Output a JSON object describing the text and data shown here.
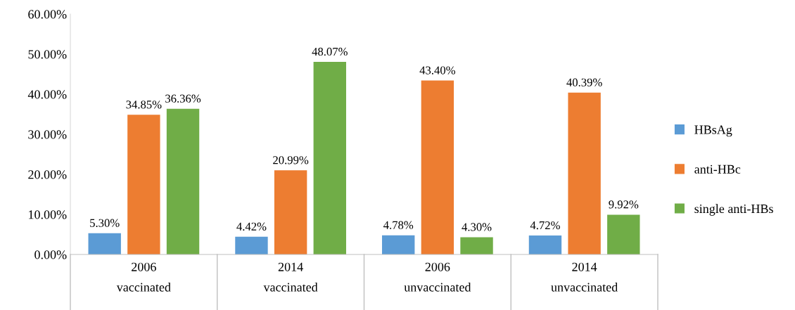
{
  "chart_data": {
    "type": "bar",
    "categories": [
      "2006\nvaccinated",
      "2014\nvaccinated",
      "2006\nunvaccinated",
      "2014\nunvaccinated"
    ],
    "series": [
      {
        "name": "HBsAg",
        "color": "#5b9bd5",
        "values": [
          5.3,
          4.42,
          4.78,
          4.72
        ],
        "value_labels": [
          "5.30%",
          "4.42%",
          "4.78%",
          "4.72%"
        ]
      },
      {
        "name": "anti-HBc",
        "color": "#ed7d31",
        "values": [
          34.85,
          20.99,
          43.4,
          40.39
        ],
        "value_labels": [
          "34.85%",
          "20.99%",
          "43.40%",
          "40.39%"
        ]
      },
      {
        "name": "single anti-HBs",
        "color": "#70ad47",
        "values": [
          36.36,
          48.07,
          4.3,
          9.92
        ],
        "value_labels": [
          "36.36%",
          "48.07%",
          "4.30%",
          "9.92%"
        ]
      }
    ],
    "ylim": [
      0,
      60
    ],
    "yticks": [
      {
        "value": 0,
        "label": "0.00%"
      },
      {
        "value": 10,
        "label": "10.00%"
      },
      {
        "value": 20,
        "label": "20.00%"
      },
      {
        "value": 30,
        "label": "30.00%"
      },
      {
        "value": 40,
        "label": "40.00%"
      },
      {
        "value": 50,
        "label": "50.00%"
      },
      {
        "value": 60,
        "label": "60.00%"
      }
    ],
    "grid": false,
    "legend": "right"
  }
}
